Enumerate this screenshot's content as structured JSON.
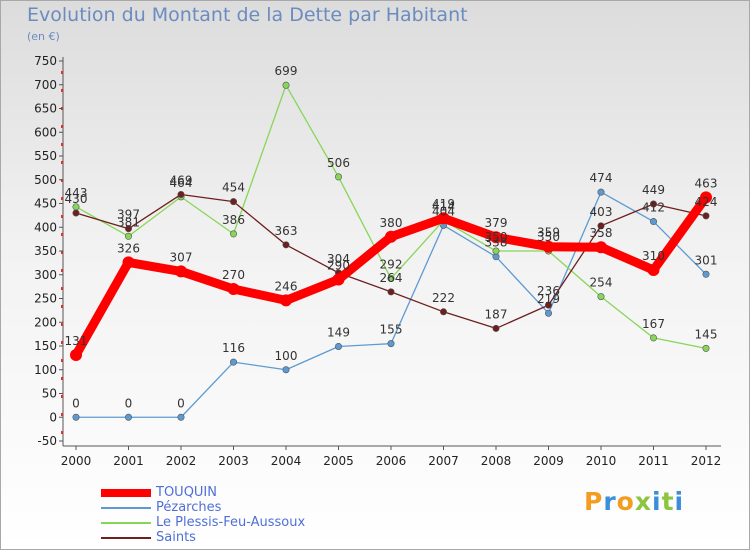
{
  "header": {
    "title": "Evolution du Montant de la Dette par Habitant",
    "unit": "(en €)"
  },
  "logo": {
    "text": "Proxiti",
    "letters": [
      {
        "ch": "P",
        "color": "#f39c1f"
      },
      {
        "ch": "r",
        "color": "#3a8fd8"
      },
      {
        "ch": "o",
        "color": "#f39c1f"
      },
      {
        "ch": "x",
        "color": "#8cc63f"
      },
      {
        "ch": "i",
        "color": "#3a8fd8"
      },
      {
        "ch": "t",
        "color": "#8cc63f"
      },
      {
        "ch": "i",
        "color": "#3a8fd8"
      }
    ]
  },
  "chart_data": {
    "type": "line",
    "title": "Evolution du Montant de la Dette par Habitant",
    "ylabel": "(en €)",
    "x": [
      "2000",
      "2001",
      "2002",
      "2003",
      "2004",
      "2005",
      "2006",
      "2007",
      "2008",
      "2009",
      "2010",
      "2011",
      "2012"
    ],
    "ylim": [
      -50,
      750
    ],
    "yticks": [
      -50,
      0,
      50,
      100,
      150,
      200,
      250,
      300,
      350,
      400,
      450,
      500,
      550,
      600,
      650,
      700,
      750
    ],
    "grid": false,
    "legend": "bottom-left",
    "series": [
      {
        "name": "TOUQUIN",
        "color": "#ff0000",
        "values": [
          131,
          326,
          307,
          270,
          246,
          290,
          380,
          419,
          379,
          359,
          358,
          310,
          463
        ]
      },
      {
        "name": "Pézarches",
        "color": "#5e9ad2",
        "values": [
          0,
          0,
          0,
          116,
          100,
          149,
          155,
          404,
          338,
          219,
          474,
          412,
          301
        ]
      },
      {
        "name": "Le Plessis-Feu-Aussoux",
        "color": "#88d658",
        "values": [
          443,
          381,
          464,
          386,
          699,
          506,
          292,
          414,
          350,
          350,
          254,
          167,
          145
        ]
      },
      {
        "name": "Saints",
        "color": "#6e1f1f",
        "values": [
          430,
          397,
          469,
          454,
          363,
          304,
          264,
          222,
          187,
          236,
          403,
          449,
          424
        ]
      }
    ]
  }
}
